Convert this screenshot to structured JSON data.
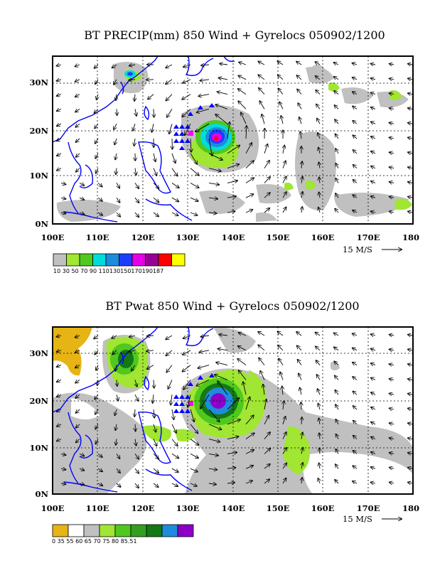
{
  "panels": [
    {
      "id": "precip",
      "title": "BT PRECIP(mm) 850 Wind + Gyrelocs 050902/1200",
      "x_ticks": [
        "100E",
        "110E",
        "120E",
        "130E",
        "140E",
        "150E",
        "160E",
        "170E",
        "180"
      ],
      "y_ticks": [
        "0N",
        "10N",
        "20N",
        "30N"
      ],
      "ref_vector": "15 M/S",
      "colorbar_colors": [
        "#c0c0c0",
        "#a0e632",
        "#50c81e",
        "#00dcdc",
        "#1e8cdc",
        "#1e3cff",
        "#e600e6",
        "#960096",
        "#ff0000",
        "#ffff00"
      ],
      "colorbar_labels": "10 30 50 70 90 110130150170190187"
    },
    {
      "id": "pwat",
      "title": "BT Pwat 850 Wind + Gyrelocs 050902/1200",
      "x_ticks": [
        "100E",
        "110E",
        "120E",
        "130E",
        "140E",
        "150E",
        "160E",
        "170E",
        "180"
      ],
      "y_ticks": [
        "0N",
        "10N",
        "20N",
        "30N"
      ],
      "ref_vector": "15 M/S",
      "colorbar_colors": [
        "#e6b414",
        "#ffffff",
        "#c0c0c0",
        "#a0e632",
        "#50c81e",
        "#32a01e",
        "#147814",
        "#1e8cdc",
        "#8c00c8"
      ],
      "colorbar_labels": "0    35    55    60    65    70    75    80  85.51"
    }
  ],
  "colors": {
    "coast": "#0000ff",
    "grid": "#000000",
    "marker_triangle": "#0000ff",
    "marker_square": "#ff00ff"
  }
}
